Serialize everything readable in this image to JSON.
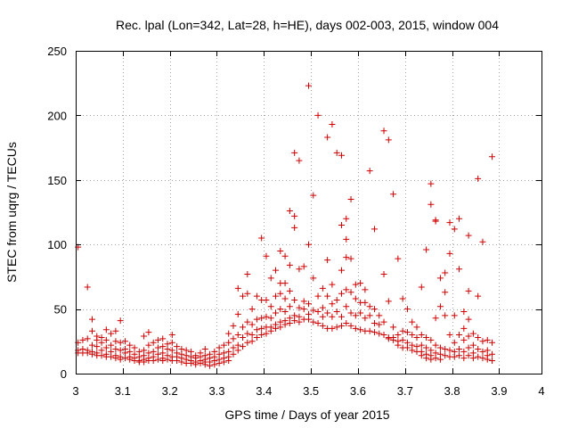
{
  "chart_data": {
    "type": "scatter",
    "title": "Rec. lpal (Lon=342, Lat=28, h=HE), days 002-003, 2015, window 004",
    "xlabel": "GPS time / Days of year 2015",
    "ylabel": "STEC from uqrg / TECUs",
    "xlim": [
      3.0,
      3.99
    ],
    "ylim": [
      0,
      250
    ],
    "grid": true,
    "marker": "+",
    "color": "#d00000",
    "x_ticks": [
      {
        "value": 3.0,
        "label": "3"
      },
      {
        "value": 3.1,
        "label": "3.1"
      },
      {
        "value": 3.2,
        "label": "3.2"
      },
      {
        "value": 3.3,
        "label": "3.3"
      },
      {
        "value": 3.4,
        "label": "3.4"
      },
      {
        "value": 3.5,
        "label": "3.5"
      },
      {
        "value": 3.6,
        "label": "3.6"
      },
      {
        "value": 3.7,
        "label": "3.7"
      },
      {
        "value": 3.8,
        "label": "3.8"
      },
      {
        "value": 3.9,
        "label": "3.9"
      },
      {
        "value": 3.99,
        "label": "4"
      }
    ],
    "y_ticks": [
      {
        "value": 0,
        "label": "0"
      },
      {
        "value": 50,
        "label": "50"
      },
      {
        "value": 100,
        "label": "100"
      },
      {
        "value": 150,
        "label": "150"
      },
      {
        "value": 200,
        "label": "200"
      },
      {
        "value": 250,
        "label": "250"
      }
    ],
    "points": [
      [
        3.005,
        98
      ],
      [
        3.005,
        24
      ],
      [
        3.005,
        18
      ],
      [
        3.005,
        16
      ],
      [
        3.015,
        26
      ],
      [
        3.015,
        19
      ],
      [
        3.015,
        16
      ],
      [
        3.025,
        67
      ],
      [
        3.025,
        27
      ],
      [
        3.025,
        18
      ],
      [
        3.025,
        16
      ],
      [
        3.035,
        42
      ],
      [
        3.035,
        33
      ],
      [
        3.035,
        22
      ],
      [
        3.035,
        17
      ],
      [
        3.035,
        15
      ],
      [
        3.045,
        29
      ],
      [
        3.045,
        26
      ],
      [
        3.045,
        21
      ],
      [
        3.045,
        16
      ],
      [
        3.045,
        14
      ],
      [
        3.055,
        28
      ],
      [
        3.055,
        24
      ],
      [
        3.055,
        18
      ],
      [
        3.055,
        14
      ],
      [
        3.065,
        34
      ],
      [
        3.065,
        26
      ],
      [
        3.065,
        20
      ],
      [
        3.065,
        15
      ],
      [
        3.065,
        13
      ],
      [
        3.075,
        31
      ],
      [
        3.075,
        22
      ],
      [
        3.075,
        17
      ],
      [
        3.075,
        13
      ],
      [
        3.085,
        33
      ],
      [
        3.085,
        25
      ],
      [
        3.085,
        19
      ],
      [
        3.085,
        14
      ],
      [
        3.085,
        12
      ],
      [
        3.095,
        41
      ],
      [
        3.095,
        24
      ],
      [
        3.095,
        18
      ],
      [
        3.095,
        13
      ],
      [
        3.095,
        11
      ],
      [
        3.105,
        25
      ],
      [
        3.105,
        19
      ],
      [
        3.105,
        16
      ],
      [
        3.105,
        12
      ],
      [
        3.115,
        22
      ],
      [
        3.115,
        17
      ],
      [
        3.115,
        13
      ],
      [
        3.115,
        11
      ],
      [
        3.125,
        20
      ],
      [
        3.125,
        15
      ],
      [
        3.125,
        12
      ],
      [
        3.125,
        10
      ],
      [
        3.135,
        17
      ],
      [
        3.135,
        13
      ],
      [
        3.135,
        10
      ],
      [
        3.135,
        9
      ],
      [
        3.145,
        29
      ],
      [
        3.145,
        18
      ],
      [
        3.145,
        14
      ],
      [
        3.145,
        11
      ],
      [
        3.145,
        9
      ],
      [
        3.155,
        32
      ],
      [
        3.155,
        22
      ],
      [
        3.155,
        16
      ],
      [
        3.155,
        12
      ],
      [
        3.155,
        10
      ],
      [
        3.165,
        24
      ],
      [
        3.165,
        17
      ],
      [
        3.165,
        13
      ],
      [
        3.165,
        10
      ],
      [
        3.175,
        26
      ],
      [
        3.175,
        20
      ],
      [
        3.175,
        15
      ],
      [
        3.175,
        11
      ],
      [
        3.185,
        27
      ],
      [
        3.185,
        21
      ],
      [
        3.185,
        16
      ],
      [
        3.185,
        12
      ],
      [
        3.185,
        10
      ],
      [
        3.195,
        23
      ],
      [
        3.195,
        19
      ],
      [
        3.195,
        14
      ],
      [
        3.195,
        11
      ],
      [
        3.205,
        30
      ],
      [
        3.205,
        24
      ],
      [
        3.205,
        18
      ],
      [
        3.205,
        13
      ],
      [
        3.205,
        10
      ],
      [
        3.215,
        21
      ],
      [
        3.215,
        16
      ],
      [
        3.215,
        13
      ],
      [
        3.215,
        10
      ],
      [
        3.225,
        19
      ],
      [
        3.225,
        15
      ],
      [
        3.225,
        12
      ],
      [
        3.225,
        9
      ],
      [
        3.235,
        18
      ],
      [
        3.235,
        14
      ],
      [
        3.235,
        11
      ],
      [
        3.235,
        8
      ],
      [
        3.245,
        17
      ],
      [
        3.245,
        13
      ],
      [
        3.245,
        10
      ],
      [
        3.245,
        8
      ],
      [
        3.255,
        14
      ],
      [
        3.255,
        12
      ],
      [
        3.255,
        9
      ],
      [
        3.255,
        7
      ],
      [
        3.265,
        16
      ],
      [
        3.265,
        13
      ],
      [
        3.265,
        10
      ],
      [
        3.265,
        8
      ],
      [
        3.275,
        19
      ],
      [
        3.275,
        14
      ],
      [
        3.275,
        11
      ],
      [
        3.275,
        9
      ],
      [
        3.275,
        7
      ],
      [
        3.285,
        15
      ],
      [
        3.285,
        12
      ],
      [
        3.285,
        9
      ],
      [
        3.285,
        6
      ],
      [
        3.295,
        17
      ],
      [
        3.295,
        13
      ],
      [
        3.295,
        10
      ],
      [
        3.295,
        7
      ],
      [
        3.305,
        20
      ],
      [
        3.305,
        15
      ],
      [
        3.305,
        11
      ],
      [
        3.305,
        8
      ],
      [
        3.315,
        22
      ],
      [
        3.315,
        16
      ],
      [
        3.315,
        12
      ],
      [
        3.315,
        9
      ],
      [
        3.325,
        31
      ],
      [
        3.325,
        24
      ],
      [
        3.325,
        17
      ],
      [
        3.325,
        13
      ],
      [
        3.325,
        10
      ],
      [
        3.335,
        37
      ],
      [
        3.335,
        27
      ],
      [
        3.335,
        20
      ],
      [
        3.335,
        15
      ],
      [
        3.345,
        66
      ],
      [
        3.345,
        46
      ],
      [
        3.345,
        30
      ],
      [
        3.345,
        22
      ],
      [
        3.345,
        18
      ],
      [
        3.355,
        60
      ],
      [
        3.355,
        36
      ],
      [
        3.355,
        28
      ],
      [
        3.355,
        21
      ],
      [
        3.365,
        77
      ],
      [
        3.365,
        62
      ],
      [
        3.365,
        40
      ],
      [
        3.365,
        31
      ],
      [
        3.365,
        24
      ],
      [
        3.375,
        50
      ],
      [
        3.375,
        38
      ],
      [
        3.375,
        30
      ],
      [
        3.375,
        25
      ],
      [
        3.385,
        60
      ],
      [
        3.385,
        42
      ],
      [
        3.385,
        34
      ],
      [
        3.385,
        28
      ],
      [
        3.395,
        105
      ],
      [
        3.395,
        57
      ],
      [
        3.395,
        43
      ],
      [
        3.395,
        35
      ],
      [
        3.395,
        30
      ],
      [
        3.405,
        91
      ],
      [
        3.405,
        57
      ],
      [
        3.405,
        44
      ],
      [
        3.405,
        36
      ],
      [
        3.405,
        31
      ],
      [
        3.415,
        74
      ],
      [
        3.415,
        52
      ],
      [
        3.415,
        43
      ],
      [
        3.415,
        36
      ],
      [
        3.415,
        33
      ],
      [
        3.425,
        80
      ],
      [
        3.425,
        60
      ],
      [
        3.425,
        47
      ],
      [
        3.425,
        38
      ],
      [
        3.425,
        35
      ],
      [
        3.435,
        95
      ],
      [
        3.435,
        70
      ],
      [
        3.435,
        62
      ],
      [
        3.435,
        50
      ],
      [
        3.435,
        40
      ],
      [
        3.435,
        36
      ],
      [
        3.445,
        91
      ],
      [
        3.445,
        70
      ],
      [
        3.445,
        58
      ],
      [
        3.445,
        48
      ],
      [
        3.445,
        41
      ],
      [
        3.445,
        38
      ],
      [
        3.455,
        126
      ],
      [
        3.455,
        84
      ],
      [
        3.455,
        64
      ],
      [
        3.455,
        52
      ],
      [
        3.455,
        43
      ],
      [
        3.455,
        39
      ],
      [
        3.465,
        122
      ],
      [
        3.465,
        113
      ],
      [
        3.465,
        171
      ],
      [
        3.465,
        57
      ],
      [
        3.465,
        45
      ],
      [
        3.465,
        41
      ],
      [
        3.475,
        165
      ],
      [
        3.475,
        81
      ],
      [
        3.475,
        51
      ],
      [
        3.475,
        44
      ],
      [
        3.475,
        40
      ],
      [
        3.485,
        83
      ],
      [
        3.485,
        56
      ],
      [
        3.485,
        50
      ],
      [
        3.485,
        42
      ],
      [
        3.495,
        223
      ],
      [
        3.495,
        100
      ],
      [
        3.495,
        54
      ],
      [
        3.495,
        46
      ],
      [
        3.495,
        42
      ],
      [
        3.505,
        138
      ],
      [
        3.505,
        74
      ],
      [
        3.505,
        49
      ],
      [
        3.505,
        40
      ],
      [
        3.515,
        200
      ],
      [
        3.515,
        60
      ],
      [
        3.515,
        48
      ],
      [
        3.515,
        39
      ],
      [
        3.525,
        66
      ],
      [
        3.525,
        51
      ],
      [
        3.525,
        44
      ],
      [
        3.525,
        37
      ],
      [
        3.535,
        183
      ],
      [
        3.535,
        88
      ],
      [
        3.535,
        60
      ],
      [
        3.535,
        47
      ],
      [
        3.535,
        35
      ],
      [
        3.545,
        193
      ],
      [
        3.545,
        69
      ],
      [
        3.545,
        54
      ],
      [
        3.545,
        44
      ],
      [
        3.545,
        35
      ],
      [
        3.555,
        171
      ],
      [
        3.555,
        57
      ],
      [
        3.555,
        48
      ],
      [
        3.555,
        36
      ],
      [
        3.565,
        169
      ],
      [
        3.565,
        115
      ],
      [
        3.565,
        80
      ],
      [
        3.565,
        62
      ],
      [
        3.565,
        44
      ],
      [
        3.565,
        37
      ],
      [
        3.575,
        120
      ],
      [
        3.575,
        104
      ],
      [
        3.575,
        90
      ],
      [
        3.575,
        65
      ],
      [
        3.575,
        52
      ],
      [
        3.575,
        39
      ],
      [
        3.585,
        135
      ],
      [
        3.585,
        89
      ],
      [
        3.585,
        63
      ],
      [
        3.585,
        47
      ],
      [
        3.585,
        37
      ],
      [
        3.595,
        69
      ],
      [
        3.595,
        58
      ],
      [
        3.595,
        45
      ],
      [
        3.595,
        35
      ],
      [
        3.605,
        70
      ],
      [
        3.605,
        55
      ],
      [
        3.605,
        47
      ],
      [
        3.605,
        34
      ],
      [
        3.615,
        65
      ],
      [
        3.615,
        55
      ],
      [
        3.615,
        43
      ],
      [
        3.615,
        33
      ],
      [
        3.625,
        157
      ],
      [
        3.625,
        52
      ],
      [
        3.625,
        45
      ],
      [
        3.625,
        33
      ],
      [
        3.635,
        112
      ],
      [
        3.635,
        50
      ],
      [
        3.635,
        39
      ],
      [
        3.635,
        32
      ],
      [
        3.645,
        45
      ],
      [
        3.645,
        38
      ],
      [
        3.645,
        31
      ],
      [
        3.655,
        188
      ],
      [
        3.655,
        77
      ],
      [
        3.655,
        40
      ],
      [
        3.655,
        30
      ],
      [
        3.665,
        181
      ],
      [
        3.665,
        56
      ],
      [
        3.665,
        28
      ],
      [
        3.665,
        27
      ],
      [
        3.675,
        139
      ],
      [
        3.675,
        36
      ],
      [
        3.675,
        28
      ],
      [
        3.675,
        26
      ],
      [
        3.685,
        89
      ],
      [
        3.685,
        30
      ],
      [
        3.685,
        25
      ],
      [
        3.685,
        22
      ],
      [
        3.695,
        58
      ],
      [
        3.695,
        33
      ],
      [
        3.695,
        26
      ],
      [
        3.695,
        20
      ],
      [
        3.705,
        50
      ],
      [
        3.705,
        32
      ],
      [
        3.705,
        24
      ],
      [
        3.705,
        20
      ],
      [
        3.715,
        40
      ],
      [
        3.715,
        30
      ],
      [
        3.715,
        22
      ],
      [
        3.715,
        18
      ],
      [
        3.725,
        36
      ],
      [
        3.725,
        28
      ],
      [
        3.725,
        21
      ],
      [
        3.725,
        17
      ],
      [
        3.735,
        67
      ],
      [
        3.735,
        30
      ],
      [
        3.735,
        22
      ],
      [
        3.735,
        17
      ],
      [
        3.735,
        14
      ],
      [
        3.745,
        96
      ],
      [
        3.745,
        28
      ],
      [
        3.745,
        20
      ],
      [
        3.745,
        15
      ],
      [
        3.745,
        12
      ],
      [
        3.755,
        147
      ],
      [
        3.755,
        131
      ],
      [
        3.755,
        26
      ],
      [
        3.755,
        18
      ],
      [
        3.755,
        14
      ],
      [
        3.755,
        11
      ],
      [
        3.765,
        119
      ],
      [
        3.765,
        118
      ],
      [
        3.765,
        43
      ],
      [
        3.765,
        22
      ],
      [
        3.765,
        16
      ],
      [
        3.765,
        12
      ],
      [
        3.775,
        74
      ],
      [
        3.775,
        52
      ],
      [
        3.775,
        20
      ],
      [
        3.775,
        15
      ],
      [
        3.775,
        11
      ],
      [
        3.785,
        78
      ],
      [
        3.785,
        63
      ],
      [
        3.785,
        45
      ],
      [
        3.785,
        19
      ],
      [
        3.785,
        14
      ],
      [
        3.795,
        117
      ],
      [
        3.795,
        93
      ],
      [
        3.795,
        30
      ],
      [
        3.795,
        18
      ],
      [
        3.795,
        13
      ],
      [
        3.805,
        112
      ],
      [
        3.805,
        45
      ],
      [
        3.805,
        24
      ],
      [
        3.805,
        17
      ],
      [
        3.805,
        13
      ],
      [
        3.815,
        120
      ],
      [
        3.815,
        81
      ],
      [
        3.815,
        30
      ],
      [
        3.815,
        19
      ],
      [
        3.815,
        14
      ],
      [
        3.825,
        48
      ],
      [
        3.825,
        35
      ],
      [
        3.825,
        26
      ],
      [
        3.825,
        17
      ],
      [
        3.825,
        12
      ],
      [
        3.835,
        107
      ],
      [
        3.835,
        64
      ],
      [
        3.835,
        42
      ],
      [
        3.835,
        29
      ],
      [
        3.835,
        20
      ],
      [
        3.835,
        14
      ],
      [
        3.845,
        31
      ],
      [
        3.845,
        22
      ],
      [
        3.845,
        16
      ],
      [
        3.845,
        12
      ],
      [
        3.855,
        151
      ],
      [
        3.855,
        60
      ],
      [
        3.855,
        28
      ],
      [
        3.855,
        19
      ],
      [
        3.855,
        13
      ],
      [
        3.865,
        102
      ],
      [
        3.865,
        25
      ],
      [
        3.865,
        17
      ],
      [
        3.865,
        12
      ],
      [
        3.875,
        26
      ],
      [
        3.875,
        18
      ],
      [
        3.875,
        14
      ],
      [
        3.875,
        11
      ],
      [
        3.885,
        168
      ],
      [
        3.885,
        24
      ],
      [
        3.885,
        15
      ],
      [
        3.885,
        10
      ]
    ]
  }
}
